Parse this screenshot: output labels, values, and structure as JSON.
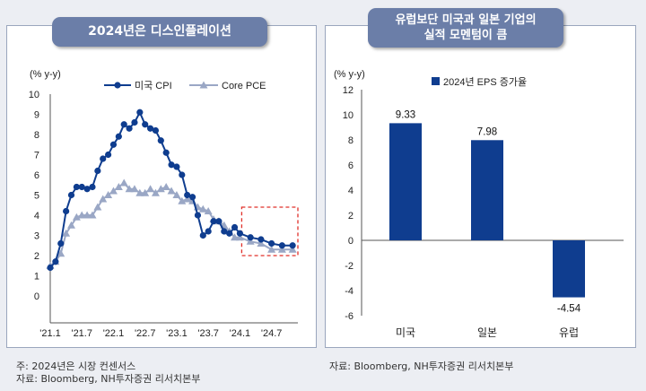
{
  "left_panel": {
    "title": "2024년은 디스인플레이션",
    "footnote": "주: 2024년은 시장 컨센서스",
    "source": "자료: Bloomberg, NH투자증권 리서치본부"
  },
  "right_panel": {
    "title_line1": "유럽보단  미국과 일본 기업의",
    "title_line2": "실적 모멘텀이 큼",
    "source": "자료: Bloomberg, NH투자증권 리서치본부"
  },
  "colors": {
    "navy": "#0f3d8f",
    "gray_series": "#9aa7c5",
    "banner": "#6b7ea8",
    "highlight": "#e0302a"
  },
  "chart_data": [
    {
      "type": "line",
      "unit_label": "(% y-y)",
      "ylim": [
        0,
        10
      ],
      "yticks": [
        0,
        1,
        2,
        3,
        4,
        5,
        6,
        7,
        8,
        9,
        10
      ],
      "xlim": [
        0,
        47
      ],
      "xticks": [
        {
          "x": 0,
          "label": "'21.1"
        },
        {
          "x": 6,
          "label": "'21.7"
        },
        {
          "x": 12,
          "label": "'22.1"
        },
        {
          "x": 18,
          "label": "'22.7"
        },
        {
          "x": 24,
          "label": "'23.1"
        },
        {
          "x": 30,
          "label": "'23.7"
        },
        {
          "x": 36,
          "label": "'24.1"
        },
        {
          "x": 42,
          "label": "'24.7"
        }
      ],
      "legend_position": "top",
      "highlight_box": {
        "x_range": [
          36,
          47
        ],
        "y_range": [
          2.0,
          4.4
        ]
      },
      "series": [
        {
          "name": "미국 CPI",
          "marker": "circle",
          "color": "#0f3d8f",
          "x": [
            0,
            1,
            2,
            3,
            4,
            5,
            6,
            7,
            8,
            9,
            10,
            11,
            12,
            13,
            14,
            15,
            16,
            17,
            18,
            19,
            20,
            21,
            22,
            23,
            24,
            25,
            26,
            27,
            28,
            29,
            30,
            31,
            32,
            33,
            34,
            35,
            36,
            38,
            40,
            42,
            44,
            46
          ],
          "y": [
            1.4,
            1.7,
            2.6,
            4.2,
            5.0,
            5.4,
            5.4,
            5.3,
            5.4,
            6.2,
            6.8,
            7.0,
            7.5,
            7.9,
            8.5,
            8.3,
            8.6,
            9.1,
            8.5,
            8.3,
            8.2,
            7.7,
            7.1,
            6.5,
            6.4,
            6.0,
            5.0,
            4.9,
            4.0,
            3.0,
            3.2,
            3.7,
            3.7,
            3.2,
            3.1,
            3.4,
            3.1,
            2.9,
            2.8,
            2.6,
            2.5,
            2.5
          ]
        },
        {
          "name": "Core PCE",
          "marker": "triangle",
          "color": "#9aa7c5",
          "x": [
            0,
            1,
            2,
            3,
            4,
            5,
            6,
            7,
            8,
            9,
            10,
            11,
            12,
            13,
            14,
            15,
            16,
            17,
            18,
            19,
            20,
            21,
            22,
            23,
            24,
            25,
            26,
            27,
            28,
            29,
            30,
            31,
            32,
            33,
            34,
            35,
            36,
            38,
            40,
            42,
            44,
            46
          ],
          "y": [
            1.5,
            1.7,
            2.1,
            3.1,
            3.5,
            3.9,
            4.0,
            4.0,
            4.0,
            4.4,
            4.8,
            5.0,
            5.2,
            5.4,
            5.6,
            5.3,
            5.3,
            5.1,
            5.1,
            5.3,
            5.1,
            5.3,
            5.4,
            5.2,
            5.0,
            4.7,
            4.8,
            4.7,
            4.4,
            4.3,
            4.2,
            3.8,
            3.7,
            3.5,
            3.2,
            2.9,
            2.9,
            2.7,
            2.6,
            2.3,
            2.3,
            2.3
          ]
        }
      ]
    },
    {
      "type": "bar",
      "unit_label": "(% y-y)",
      "ylim": [
        -6,
        12
      ],
      "yticks": [
        -6,
        -4,
        -2,
        0,
        2,
        4,
        6,
        8,
        10,
        12
      ],
      "legend_position": "top-left",
      "categories": [
        "미국",
        "일본",
        "유럽"
      ],
      "series": [
        {
          "name": "2024년 EPS 증가율",
          "values": [
            9.33,
            7.98,
            -4.54
          ],
          "labels": [
            "9.33",
            "7.98",
            "-4.54"
          ],
          "color": "#0f3d8f"
        }
      ]
    }
  ]
}
